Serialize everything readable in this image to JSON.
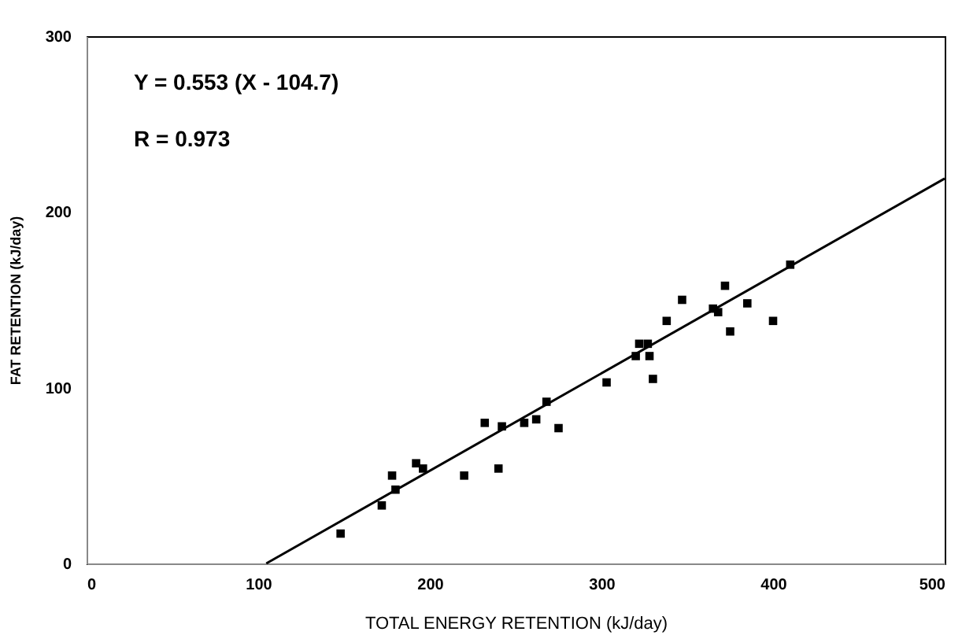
{
  "chart_data": {
    "type": "scatter",
    "xlabel": "TOTAL ENERGY RETENTION (kJ/day)",
    "ylabel": "FAT RETENTION (kJ/day)",
    "xlim": [
      0,
      500
    ],
    "ylim": [
      0,
      300
    ],
    "xticks": [
      0,
      100,
      200,
      300,
      400,
      500
    ],
    "yticks": [
      0,
      100,
      200,
      300
    ],
    "grid": false,
    "marker": "square",
    "annotations": [
      "Y = 0.553 (X - 104.7)",
      "R = 0.973"
    ],
    "series": [
      {
        "color": "#000000",
        "x": [
          148,
          172,
          178,
          180,
          192,
          196,
          220,
          232,
          240,
          242,
          255,
          262,
          268,
          275,
          303,
          320,
          322,
          327,
          328,
          330,
          338,
          347,
          365,
          368,
          372,
          375,
          385,
          400,
          410
        ],
        "values": [
          17,
          33,
          50,
          42,
          57,
          54,
          50,
          80,
          54,
          78,
          80,
          82,
          92,
          77,
          103,
          118,
          125,
          125,
          118,
          105,
          138,
          150,
          145,
          143,
          158,
          132,
          148,
          138,
          170
        ]
      },
      {
        "type": "line",
        "color": "#000000",
        "line_style": "solid",
        "marker": "none",
        "x": [
          104.7,
          500
        ],
        "values": [
          0,
          219
        ]
      }
    ]
  }
}
